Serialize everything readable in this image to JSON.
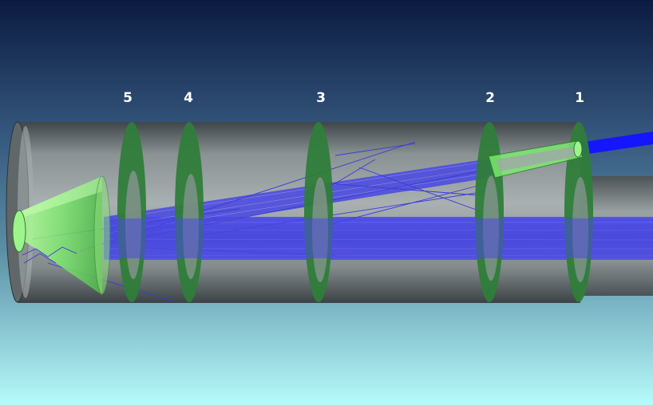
{
  "rings": [
    {
      "id": "5",
      "label": "5"
    },
    {
      "id": "4",
      "label": "4"
    },
    {
      "id": "3",
      "label": "3"
    },
    {
      "id": "2",
      "label": "2"
    },
    {
      "id": "1",
      "label": "1"
    }
  ],
  "colors": {
    "background_top": "#0b1a40",
    "background_bottom": "#b6fbfb",
    "tube_body": "#8e9596",
    "ring_green": "#2f7d3a",
    "beam_blue": "#4545e0",
    "cone_green": "#7cf06e"
  }
}
